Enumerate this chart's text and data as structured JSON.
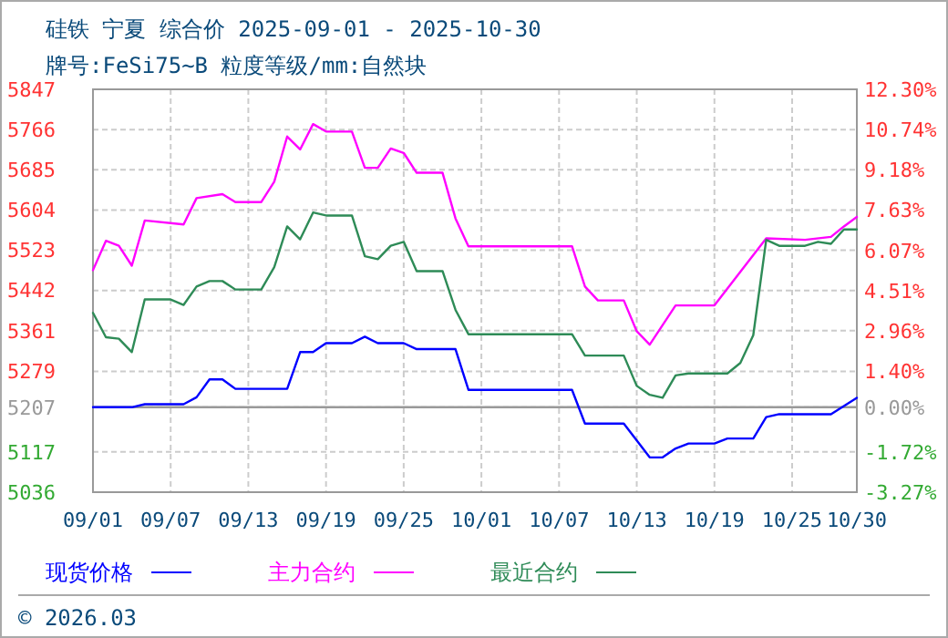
{
  "chart_data": {
    "type": "line",
    "title": "硅铁 宁夏 综合价 2025-09-01 - 2025-10-30",
    "subtitle": "牌号:FeSi75~B 粒度等级/mm:自然块",
    "xlim": [
      "2025-09-01",
      "2025-10-30"
    ],
    "xticks": [
      {
        "value": "2025-09-01",
        "label": "09/01"
      },
      {
        "value": "2025-09-07",
        "label": "09/07"
      },
      {
        "value": "2025-09-13",
        "label": "09/13"
      },
      {
        "value": "2025-09-19",
        "label": "09/19"
      },
      {
        "value": "2025-09-25",
        "label": "09/25"
      },
      {
        "value": "2025-10-01",
        "label": "10/01"
      },
      {
        "value": "2025-10-07",
        "label": "10/07"
      },
      {
        "value": "2025-10-13",
        "label": "10/13"
      },
      {
        "value": "2025-10-19",
        "label": "10/19"
      },
      {
        "value": "2025-10-25",
        "label": "10/25"
      },
      {
        "value": "2025-10-30",
        "label": "10/30"
      }
    ],
    "ylim": [
      5036,
      5847
    ],
    "yticks": [
      5036,
      5117,
      5207,
      5279,
      5361,
      5442,
      5523,
      5604,
      5685,
      5766,
      5847
    ],
    "y2lim": [
      -3.27,
      12.3
    ],
    "y2ticks": [
      {
        "value": -3.27,
        "label": "-3.27%"
      },
      {
        "value": -1.72,
        "label": "-1.72%"
      },
      {
        "value": 0,
        "label": "0.00%"
      },
      {
        "value": 1.4,
        "label": "1.40%"
      },
      {
        "value": 2.96,
        "label": "2.96%"
      },
      {
        "value": 4.51,
        "label": "4.51%"
      },
      {
        "value": 6.07,
        "label": "6.07%"
      },
      {
        "value": 7.63,
        "label": "7.63%"
      },
      {
        "value": 9.18,
        "label": "9.18%"
      },
      {
        "value": 10.74,
        "label": "10.74%"
      },
      {
        "value": 12.3,
        "label": "12.30%"
      }
    ],
    "grid": true,
    "legend": "bottom",
    "line_style": "solid",
    "marker": "none",
    "ref_lines": [
      {
        "axis": "y",
        "value": 5207,
        "color": "#999999"
      }
    ],
    "annotations": [
      "© 2026.03"
    ],
    "series": [
      {
        "name": "现货价格",
        "color": "#0000ff",
        "x": [
          "2025-09-01",
          "2025-09-04",
          "2025-09-05",
          "2025-09-08",
          "2025-09-09",
          "2025-09-10",
          "2025-09-11",
          "2025-09-12",
          "2025-09-16",
          "2025-09-17",
          "2025-09-18",
          "2025-09-19",
          "2025-09-21",
          "2025-09-22",
          "2025-09-23",
          "2025-09-25",
          "2025-09-26",
          "2025-09-29",
          "2025-09-30",
          "2025-10-08",
          "2025-10-09",
          "2025-10-12",
          "2025-10-14",
          "2025-10-15",
          "2025-10-16",
          "2025-10-17",
          "2025-10-19",
          "2025-10-20",
          "2025-10-22",
          "2025-10-23",
          "2025-10-24",
          "2025-10-28",
          "2025-10-30"
        ],
        "values": [
          5207,
          5207,
          5213,
          5213,
          5227,
          5263,
          5263,
          5244,
          5244,
          5318,
          5318,
          5336,
          5336,
          5349,
          5336,
          5336,
          5324,
          5324,
          5242,
          5242,
          5174,
          5174,
          5106,
          5106,
          5124,
          5134,
          5134,
          5144,
          5144,
          5187,
          5193,
          5193,
          5226
        ]
      },
      {
        "name": "主力合约",
        "color": "#ff00ff",
        "x": [
          "2025-09-01",
          "2025-09-02",
          "2025-09-03",
          "2025-09-04",
          "2025-09-05",
          "2025-09-08",
          "2025-09-09",
          "2025-09-11",
          "2025-09-12",
          "2025-09-14",
          "2025-09-15",
          "2025-09-16",
          "2025-09-17",
          "2025-09-18",
          "2025-09-19",
          "2025-09-21",
          "2025-09-22",
          "2025-09-23",
          "2025-09-24",
          "2025-09-25",
          "2025-09-26",
          "2025-09-28",
          "2025-09-29",
          "2025-09-30",
          "2025-10-08",
          "2025-10-09",
          "2025-10-10",
          "2025-10-12",
          "2025-10-13",
          "2025-10-14",
          "2025-10-16",
          "2025-10-19",
          "2025-10-23",
          "2025-10-26",
          "2025-10-28",
          "2025-10-29",
          "2025-10-30"
        ],
        "values": [
          5483,
          5542,
          5532,
          5492,
          5583,
          5575,
          5628,
          5636,
          5620,
          5620,
          5661,
          5752,
          5726,
          5777,
          5762,
          5762,
          5689,
          5689,
          5728,
          5719,
          5679,
          5679,
          5587,
          5531,
          5531,
          5450,
          5422,
          5422,
          5360,
          5333,
          5412,
          5412,
          5547,
          5544,
          5550,
          5571,
          5590
        ]
      },
      {
        "name": "最近合约",
        "color": "#2e8b57",
        "x": [
          "2025-09-01",
          "2025-09-02",
          "2025-09-03",
          "2025-09-04",
          "2025-09-05",
          "2025-09-07",
          "2025-09-08",
          "2025-09-09",
          "2025-09-10",
          "2025-09-11",
          "2025-09-12",
          "2025-09-14",
          "2025-09-15",
          "2025-09-16",
          "2025-09-17",
          "2025-09-18",
          "2025-09-19",
          "2025-09-21",
          "2025-09-22",
          "2025-09-23",
          "2025-09-24",
          "2025-09-25",
          "2025-09-26",
          "2025-09-28",
          "2025-09-29",
          "2025-09-30",
          "2025-10-08",
          "2025-10-09",
          "2025-10-12",
          "2025-10-13",
          "2025-10-14",
          "2025-10-15",
          "2025-10-16",
          "2025-10-17",
          "2025-10-20",
          "2025-10-21",
          "2025-10-22",
          "2025-10-23",
          "2025-10-24",
          "2025-10-26",
          "2025-10-27",
          "2025-10-28",
          "2025-10-29",
          "2025-10-30"
        ],
        "values": [
          5397,
          5348,
          5345,
          5318,
          5424,
          5424,
          5413,
          5450,
          5461,
          5461,
          5444,
          5444,
          5489,
          5571,
          5545,
          5599,
          5593,
          5593,
          5511,
          5505,
          5532,
          5540,
          5481,
          5481,
          5403,
          5354,
          5354,
          5311,
          5311,
          5250,
          5232,
          5226,
          5271,
          5275,
          5275,
          5296,
          5352,
          5544,
          5532,
          5532,
          5540,
          5536,
          5565,
          5565
        ]
      }
    ]
  }
}
